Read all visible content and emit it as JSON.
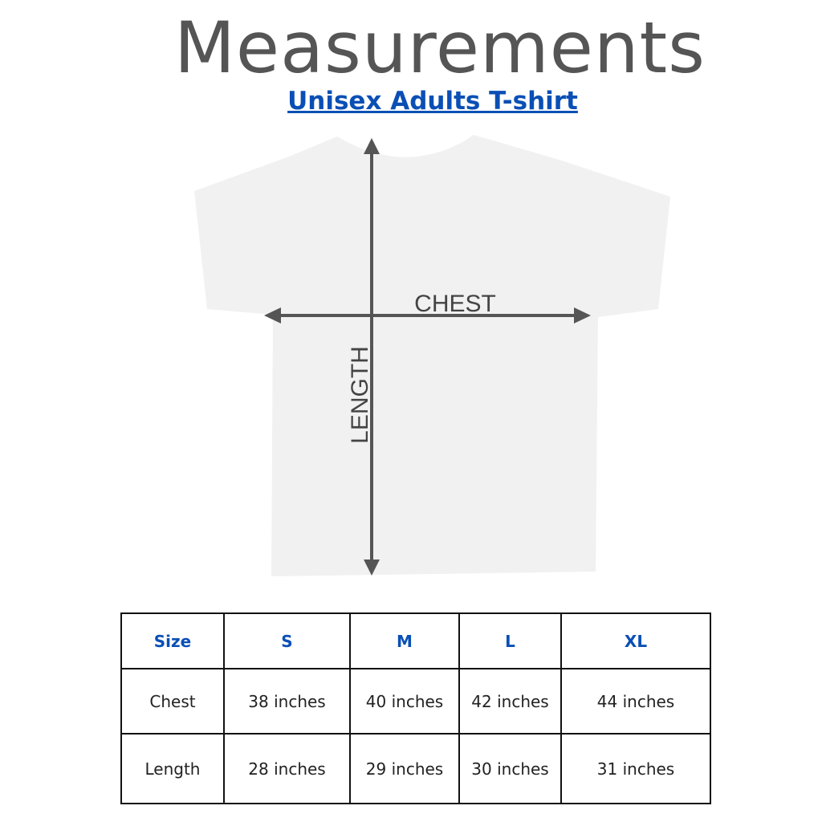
{
  "title": "Measurements",
  "subtitle": "Unisex Adults T-shirt",
  "diagram": {
    "chest_label": "CHEST",
    "length_label": "LENGTH",
    "shirt_color": "#f2f2f2",
    "arrow_color": "#555555"
  },
  "table": {
    "headers": [
      "Size",
      "S",
      "M",
      "L",
      "XL"
    ],
    "rows": [
      {
        "label": "Chest",
        "values": [
          "38 inches",
          "40 inches",
          "42 inches",
          "44 inches"
        ]
      },
      {
        "label": "Length",
        "values": [
          "28 inches",
          "29 inches",
          "30 inches",
          "31 inches"
        ]
      }
    ],
    "header_color": "#0a4fb5"
  }
}
